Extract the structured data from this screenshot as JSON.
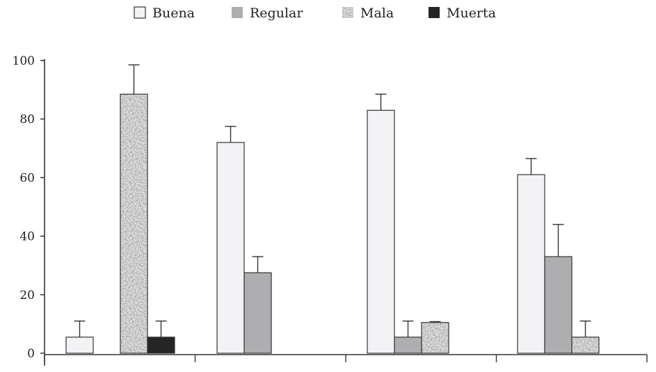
{
  "chart_data": {
    "type": "bar",
    "title": "",
    "xlabel": "",
    "ylabel": "",
    "ylim": [
      0,
      100
    ],
    "yticks": [
      0,
      20,
      40,
      60,
      80,
      100
    ],
    "ytick_labels": [
      "0",
      "20",
      "40",
      "60",
      "80",
      "100"
    ],
    "categories": [
      "",
      "",
      "",
      ""
    ],
    "legend_position": "top",
    "grid": false,
    "series": [
      {
        "name": "Buena",
        "color": "#f3f3f5",
        "pattern": "solid",
        "values": [
          5.5,
          72,
          83,
          61
        ],
        "errors": [
          5.5,
          5.5,
          5.5,
          5.5
        ]
      },
      {
        "name": "Regular",
        "color": "#aeaeb0",
        "pattern": "solid",
        "values": [
          null,
          27.5,
          5.5,
          33
        ],
        "errors": [
          null,
          5.5,
          5.5,
          11
        ]
      },
      {
        "name": "Mala",
        "color": "#a9a9a9",
        "pattern": "speckled",
        "values": [
          88.5,
          null,
          10.5,
          5.5
        ],
        "errors": [
          10,
          null,
          0.3,
          5.5
        ]
      },
      {
        "name": "Muerta",
        "color": "#252525",
        "pattern": "solid",
        "values": [
          5.5,
          null,
          null,
          null
        ],
        "errors": [
          5.5,
          null,
          null,
          null
        ]
      }
    ]
  }
}
